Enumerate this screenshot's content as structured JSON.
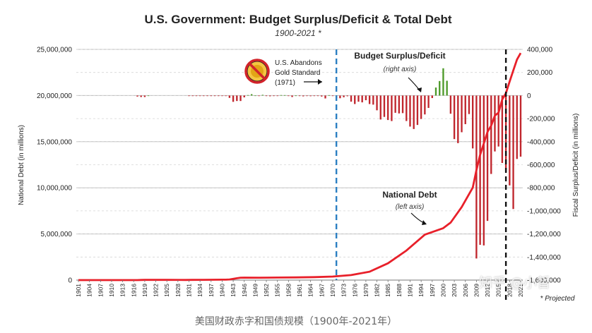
{
  "caption": "美国财政赤字和国债规模（1900年-2021年）",
  "watermark": "知乎 @小皙",
  "colors": {
    "debt": "#e8202a",
    "deficit": "#c0262d",
    "surplus": "#4e9a2a",
    "divider": "#2b7fc2",
    "projection": "#111111"
  },
  "icon": "no-gold-sign-icon",
  "chart_data": {
    "type": "bar+line",
    "title": "U.S. Government: Budget Surplus/Deficit & Total Debt",
    "subtitle": "1900-2021 *",
    "left_axis": {
      "label": "National Debt (in millions)",
      "ylim": [
        0,
        25000000
      ],
      "ticks": [
        "0",
        "5,000,000",
        "10,000,000",
        "15,000,000",
        "20,000,000",
        "25,000,000"
      ]
    },
    "right_axis": {
      "label": "Fiscal Surplus/Deficit (in millions)",
      "ylim": [
        -1600000,
        400000
      ],
      "ticks": [
        "400,000",
        "200,000",
        "0",
        "-200,000",
        "-400,000",
        "-600,000",
        "-800,000",
        "-1,000,000",
        "-1,200,000",
        "-1,400,000",
        "-1,600,000"
      ]
    },
    "x_range": [
      1901,
      2021
    ],
    "x_tick_labels": [
      "1901",
      "1904",
      "1907",
      "1910",
      "1913",
      "1916",
      "1919",
      "1922",
      "1925",
      "1928",
      "1931",
      "1934",
      "1937",
      "1940",
      "1943",
      "1946",
      "1949",
      "1952",
      "1955",
      "1958",
      "1961",
      "1964",
      "1967",
      "1970",
      "1973",
      "1976",
      "1979",
      "1982",
      "1985",
      "1988",
      "1991",
      "1994",
      "1997",
      "2000",
      "2003",
      "2006",
      "2009",
      "2012",
      "2015",
      "2018",
      "2021"
    ],
    "grid": true,
    "markers": {
      "gold_standard_year": 1971,
      "projection_year": 2017
    },
    "annotations": {
      "gold": [
        "U.S. Abandons",
        "Gold Standard",
        "(1971)"
      ],
      "surplus_title": "Budget Surplus/Deficit",
      "surplus_sub": "(right axis)",
      "debt_title": "National Debt",
      "debt_sub": "(left axis)",
      "projected": "* Projected"
    },
    "series": [
      {
        "name": "Budget Surplus/Deficit",
        "axis": "right",
        "kind": "bar",
        "points": [
          [
            1917,
            -9000
          ],
          [
            1918,
            -13000
          ],
          [
            1919,
            -13000
          ],
          [
            1920,
            300
          ],
          [
            1931,
            -500
          ],
          [
            1932,
            -2700
          ],
          [
            1933,
            -2600
          ],
          [
            1934,
            -3600
          ],
          [
            1935,
            -2800
          ],
          [
            1936,
            -4400
          ],
          [
            1937,
            -2200
          ],
          [
            1938,
            -100
          ],
          [
            1939,
            -2800
          ],
          [
            1940,
            -2900
          ],
          [
            1941,
            -4900
          ],
          [
            1942,
            -20500
          ],
          [
            1943,
            -54600
          ],
          [
            1944,
            -47600
          ],
          [
            1945,
            -47600
          ],
          [
            1946,
            -15900
          ],
          [
            1947,
            4000
          ],
          [
            1948,
            11800
          ],
          [
            1949,
            600
          ],
          [
            1950,
            -3100
          ],
          [
            1951,
            6100
          ],
          [
            1952,
            -1500
          ],
          [
            1953,
            -6500
          ],
          [
            1954,
            -1200
          ],
          [
            1955,
            -3000
          ],
          [
            1956,
            3900
          ],
          [
            1957,
            3400
          ],
          [
            1958,
            -2800
          ],
          [
            1959,
            -12800
          ],
          [
            1960,
            300
          ],
          [
            1961,
            -3300
          ],
          [
            1962,
            -7100
          ],
          [
            1963,
            -4800
          ],
          [
            1964,
            -5900
          ],
          [
            1965,
            -1400
          ],
          [
            1966,
            -3700
          ],
          [
            1967,
            -8600
          ],
          [
            1968,
            -25200
          ],
          [
            1969,
            3200
          ],
          [
            1970,
            -2800
          ],
          [
            1971,
            -23000
          ],
          [
            1972,
            -23400
          ],
          [
            1973,
            -14900
          ],
          [
            1974,
            -6100
          ],
          [
            1975,
            -53200
          ],
          [
            1976,
            -73700
          ],
          [
            1977,
            -53700
          ],
          [
            1978,
            -59200
          ],
          [
            1979,
            -40700
          ],
          [
            1980,
            -73800
          ],
          [
            1981,
            -79000
          ],
          [
            1982,
            -128000
          ],
          [
            1983,
            -207800
          ],
          [
            1984,
            -185400
          ],
          [
            1985,
            -212300
          ],
          [
            1986,
            -221200
          ],
          [
            1987,
            -149700
          ],
          [
            1988,
            -155200
          ],
          [
            1989,
            -152600
          ],
          [
            1990,
            -221000
          ],
          [
            1991,
            -269200
          ],
          [
            1992,
            -290300
          ],
          [
            1993,
            -255100
          ],
          [
            1994,
            -203200
          ],
          [
            1995,
            -164000
          ],
          [
            1996,
            -107400
          ],
          [
            1997,
            -21900
          ],
          [
            1998,
            69300
          ],
          [
            1999,
            125600
          ],
          [
            2000,
            236200
          ],
          [
            2001,
            128200
          ],
          [
            2002,
            -157800
          ],
          [
            2003,
            -377600
          ],
          [
            2004,
            -412700
          ],
          [
            2005,
            -318300
          ],
          [
            2006,
            -248200
          ],
          [
            2007,
            -160700
          ],
          [
            2008,
            -458600
          ],
          [
            2009,
            -1412700
          ],
          [
            2010,
            -1294400
          ],
          [
            2011,
            -1299600
          ],
          [
            2012,
            -1087000
          ],
          [
            2013,
            -679800
          ],
          [
            2014,
            -484800
          ],
          [
            2015,
            -442000
          ],
          [
            2016,
            -584700
          ],
          [
            2017,
            -665400
          ],
          [
            2018,
            -779000
          ],
          [
            2019,
            -984000
          ],
          [
            2020,
            -550000
          ],
          [
            2021,
            -530000
          ]
        ]
      },
      {
        "name": "National Debt",
        "axis": "left",
        "kind": "line",
        "points": [
          [
            1901,
            1200
          ],
          [
            1910,
            1100
          ],
          [
            1916,
            1200
          ],
          [
            1917,
            3000
          ],
          [
            1918,
            12000
          ],
          [
            1919,
            25500
          ],
          [
            1920,
            24300
          ],
          [
            1925,
            20500
          ],
          [
            1930,
            16200
          ],
          [
            1932,
            19500
          ],
          [
            1935,
            28700
          ],
          [
            1940,
            43000
          ],
          [
            1941,
            49000
          ],
          [
            1942,
            72400
          ],
          [
            1943,
            136700
          ],
          [
            1944,
            201000
          ],
          [
            1945,
            258700
          ],
          [
            1946,
            269400
          ],
          [
            1950,
            256900
          ],
          [
            1955,
            274400
          ],
          [
            1960,
            290500
          ],
          [
            1965,
            322300
          ],
          [
            1970,
            380900
          ],
          [
            1975,
            541900
          ],
          [
            1980,
            909000
          ],
          [
            1985,
            1817400
          ],
          [
            1990,
            3206300
          ],
          [
            1995,
            4920600
          ],
          [
            2000,
            5628700
          ],
          [
            2002,
            6228200
          ],
          [
            2005,
            7905300
          ],
          [
            2008,
            10024700
          ],
          [
            2009,
            11909800
          ],
          [
            2010,
            13561600
          ],
          [
            2011,
            14790300
          ],
          [
            2012,
            16066200
          ],
          [
            2013,
            16738200
          ],
          [
            2014,
            17824100
          ],
          [
            2015,
            18150600
          ],
          [
            2016,
            19573400
          ],
          [
            2017,
            20244900
          ],
          [
            2018,
            21516100
          ],
          [
            2019,
            22719400
          ],
          [
            2020,
            23900000
          ],
          [
            2021,
            24600000
          ]
        ]
      }
    ]
  }
}
